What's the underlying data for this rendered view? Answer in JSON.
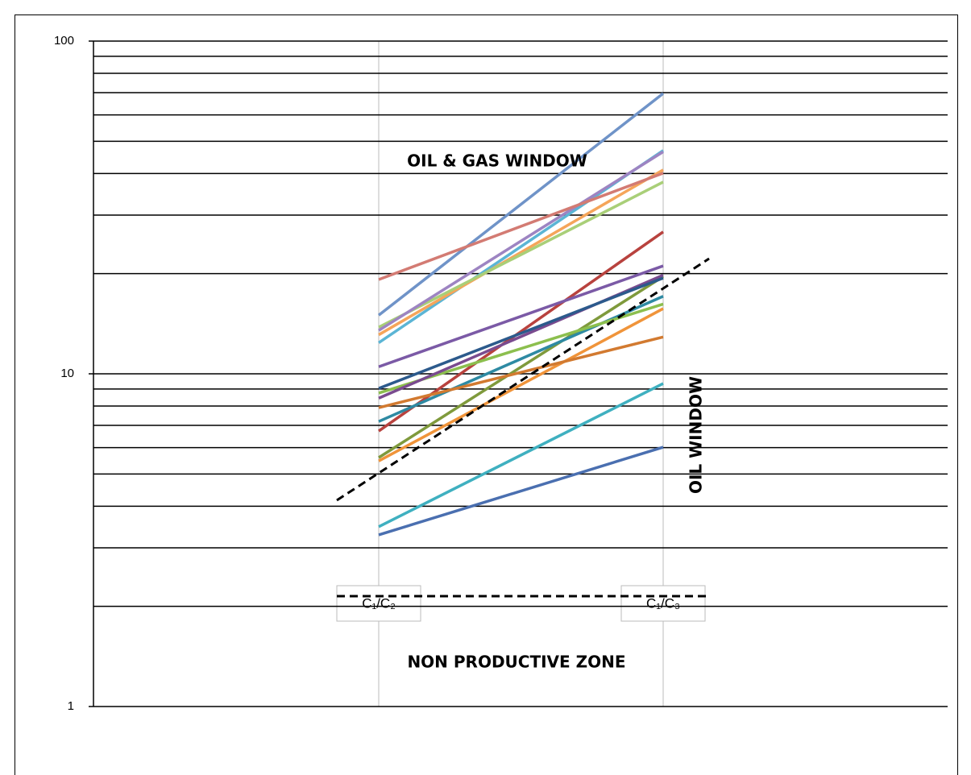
{
  "chart_data": {
    "type": "line",
    "categories": [
      "C₁/C₂",
      "C₁/C₃"
    ],
    "ylim": [
      1,
      100
    ],
    "yticks": [
      1,
      10,
      100
    ],
    "log_y": true,
    "grid": true,
    "minor_yticks": [
      2,
      3,
      4,
      5,
      6,
      7,
      8,
      9,
      20,
      30,
      40,
      50,
      60,
      70,
      80,
      90
    ],
    "annotations": [
      "OIL & GAS WINDOW",
      "OIL WINDOW",
      "NON PRODUCTIVE ZONE"
    ],
    "series": [
      {
        "color": "#4a6fb0",
        "values": [
          3.28,
          6.02
        ]
      },
      {
        "color": "#3fb0c0",
        "values": [
          3.47,
          9.35
        ]
      },
      {
        "color": "#f0943a",
        "values": [
          5.47,
          15.7
        ]
      },
      {
        "color": "#7f9a3c",
        "values": [
          5.6,
          19.6
        ]
      },
      {
        "color": "#b8423e",
        "values": [
          6.73,
          26.7
        ]
      },
      {
        "color": "#2e8aa3",
        "values": [
          7.19,
          17.1
        ]
      },
      {
        "color": "#d27a30",
        "values": [
          7.91,
          12.9
        ]
      },
      {
        "color": "#8cbf4e",
        "values": [
          8.75,
          16.2
        ]
      },
      {
        "color": "#7a4b8f",
        "values": [
          8.45,
          19.8
        ]
      },
      {
        "color": "#2c5a8c",
        "values": [
          9.04,
          19.4
        ]
      },
      {
        "color": "#7b5aa6",
        "values": [
          10.5,
          21.1
        ]
      },
      {
        "color": "#5bb5d5",
        "values": [
          12.4,
          46.9
        ]
      },
      {
        "color": "#f5a55a",
        "values": [
          13.1,
          41.0
        ]
      },
      {
        "color": "#a9cf78",
        "values": [
          13.8,
          37.7
        ]
      },
      {
        "color": "#9d84c2",
        "values": [
          13.5,
          46.5
        ]
      },
      {
        "color": "#6f93c8",
        "values": [
          15.0,
          69.6
        ]
      },
      {
        "color": "#d37b73",
        "values": [
          19.2,
          40.1
        ]
      }
    ]
  }
}
